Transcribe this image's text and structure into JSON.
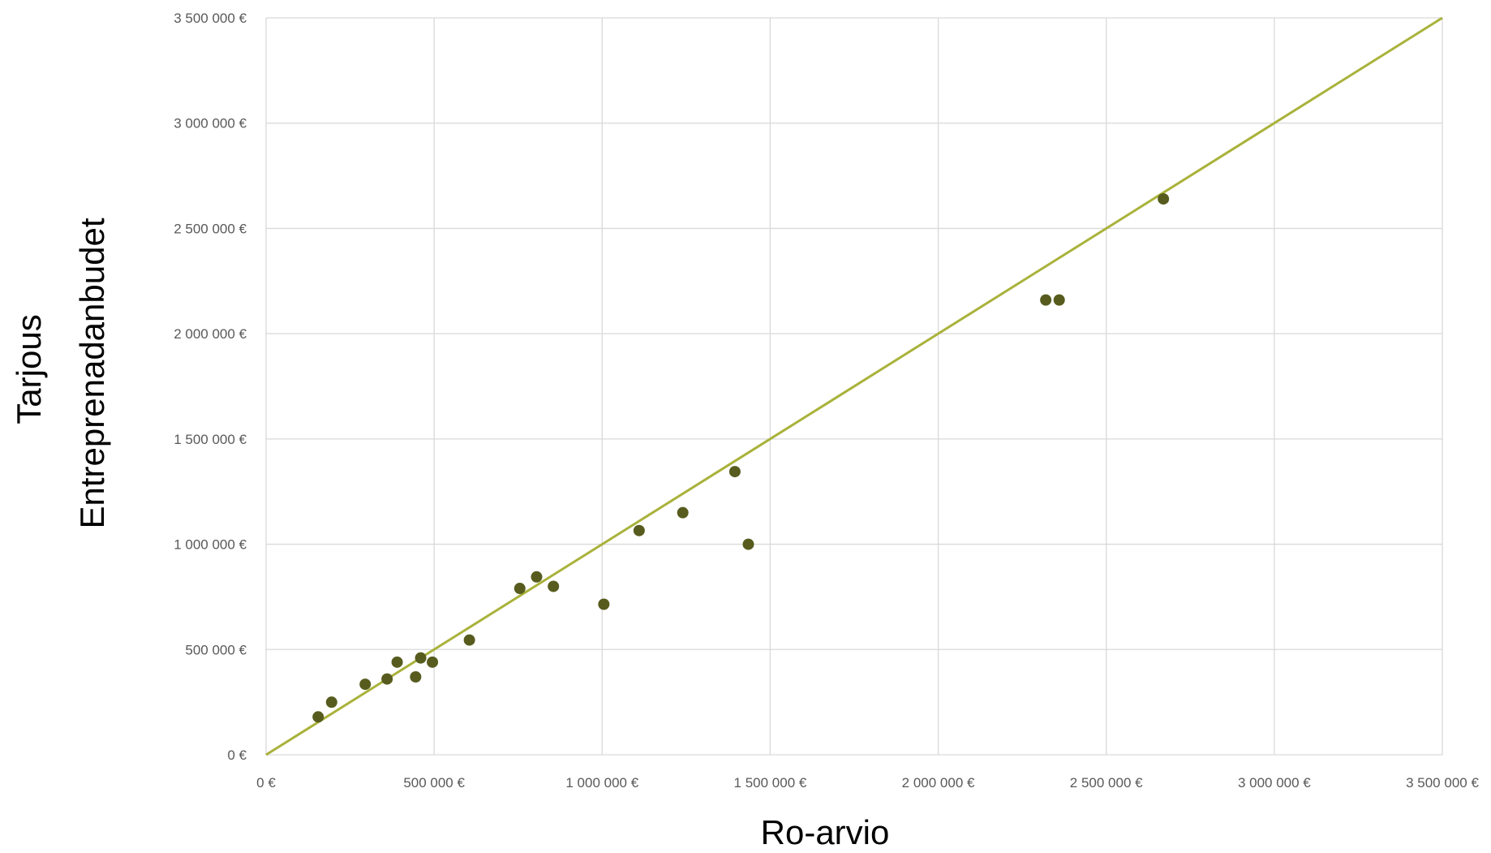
{
  "chart_data": {
    "type": "scatter",
    "xlabel": "Ro-arvio",
    "ylabel_lines": [
      "Tarjous",
      "Entreprenadanbudet"
    ],
    "xlim": [
      0,
      3500000
    ],
    "ylim": [
      0,
      3500000
    ],
    "x_ticks": [
      0,
      500000,
      1000000,
      1500000,
      2000000,
      2500000,
      3000000,
      3500000
    ],
    "y_ticks": [
      0,
      500000,
      1000000,
      1500000,
      2000000,
      2500000,
      3000000,
      3500000
    ],
    "x_tick_labels": [
      "0 €",
      "500 000 €",
      "1 000 000 €",
      "1 500 000 €",
      "2 000 000 €",
      "2 500 000 €",
      "3 000 000 €",
      "3 500 000 €"
    ],
    "y_tick_labels": [
      "0 €",
      "500 000 €",
      "1 000 000 €",
      "1 500 000 €",
      "2 000 000 €",
      "2 500 000 €",
      "3 000 000 €",
      "3 500 000 €"
    ],
    "grid": true,
    "legend": "none",
    "reference_line": {
      "from": [
        0,
        0
      ],
      "to": [
        3500000,
        3500000
      ],
      "color": "#a9b23a"
    },
    "series": [
      {
        "color": "#575c1e",
        "points": [
          [
            155000,
            180000
          ],
          [
            195000,
            250000
          ],
          [
            295000,
            335000
          ],
          [
            360000,
            360000
          ],
          [
            390000,
            440000
          ],
          [
            445000,
            370000
          ],
          [
            460000,
            460000
          ],
          [
            495000,
            440000
          ],
          [
            605000,
            545000
          ],
          [
            755000,
            790000
          ],
          [
            805000,
            845000
          ],
          [
            855000,
            800000
          ],
          [
            1005000,
            715000
          ],
          [
            1110000,
            1065000
          ],
          [
            1240000,
            1150000
          ],
          [
            1395000,
            1345000
          ],
          [
            1435000,
            1000000
          ],
          [
            2320000,
            2160000
          ],
          [
            2360000,
            2160000
          ],
          [
            2670000,
            2640000
          ]
        ]
      }
    ]
  }
}
